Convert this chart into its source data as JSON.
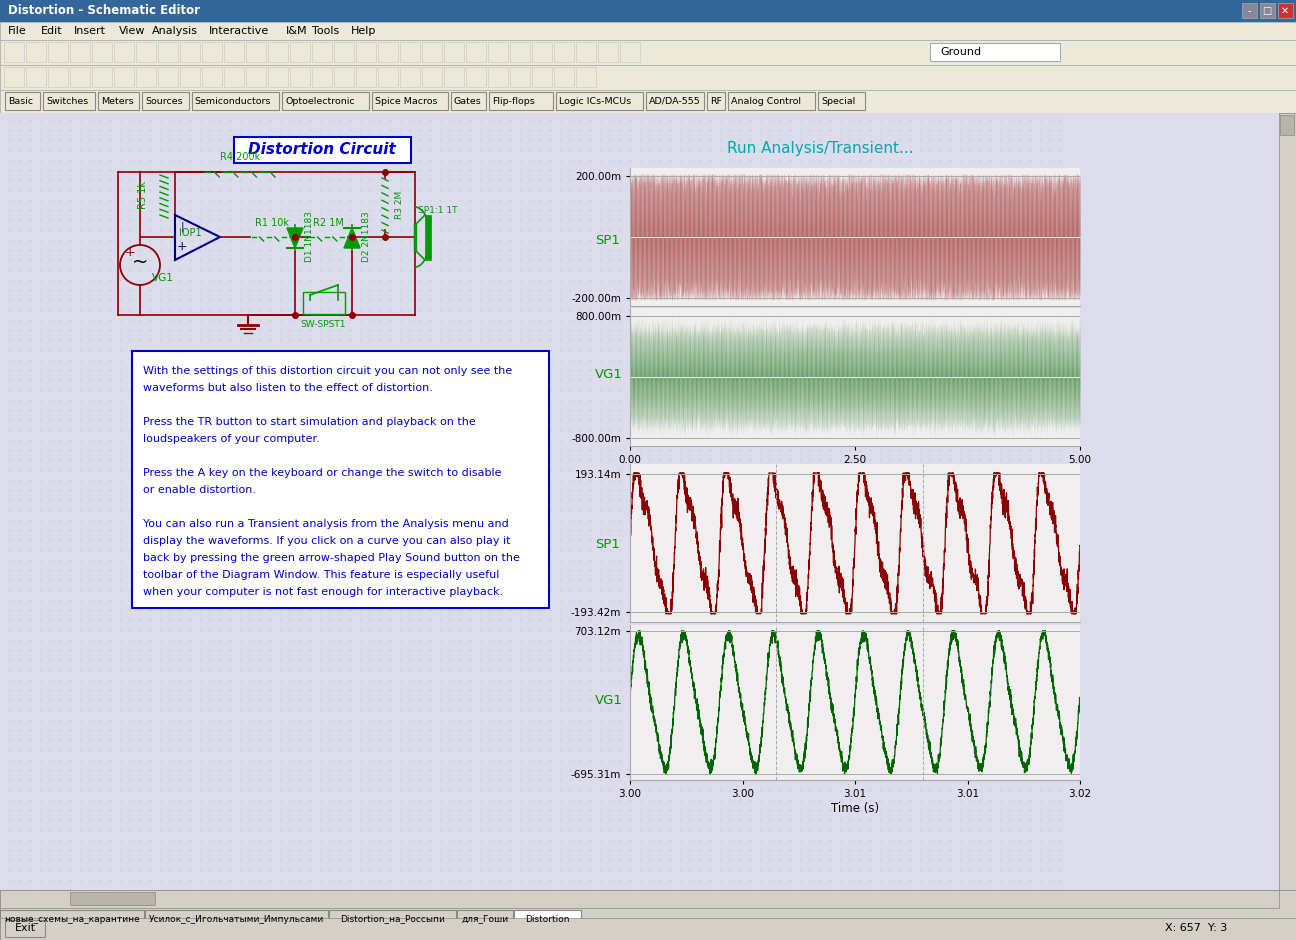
{
  "title_bar": "Distortion - Schematic Editor",
  "window_title_bg": "#336699",
  "app_bg": "#d4d0c8",
  "canvas_bg": "#dcdcec",
  "dot_color": "#c0c0d0",
  "circuit_title": "Distortion Circuit",
  "circuit_title_color": "#0000cc",
  "circuit_border": "#0000cc",
  "run_analysis_text": "Run Analysis/Transient...",
  "run_analysis_color": "#00aaaa",
  "sp1_label": "SP1",
  "vg1_label": "VG1",
  "label_color": "#009900",
  "plot1_color": "#8b0000",
  "plot2_color": "#006400",
  "plot3_color": "#8b0000",
  "plot4_color": "#006400",
  "text_box_color": "#0000cc",
  "text_box_bg": "#ffffff",
  "text_content": [
    "With the settings of this distortion circuit you can not only see the",
    "waveforms but also listen to the effect of distortion.",
    "",
    "Press the TR button to start simulation and playback on the",
    "loudspeakers of your computer.",
    "",
    "Press the A key on the keyboard or change the switch to disable",
    "or enable distortion.",
    "",
    "You can also run a Transient analysis from the Analysis menu and",
    "display the waveforms. If you click on a curve you can also play it",
    "back by pressing the green arrow-shaped Play Sound button on the",
    "toolbar of the Diagram Window. This feature is especially useful",
    "when your computer is not fast enough for interactive playback."
  ],
  "tab_labels": [
    "новые_схемы_на_карантине",
    "Усилок_с_Игольчатыми_Импульсами",
    "Distortion_на_Россыпи",
    "для_Гоши",
    "Distortion"
  ],
  "active_tab": "Distortion",
  "status_text": "X: 657  Y: 3",
  "exit_text": "Exit",
  "menu_items": [
    "File",
    "Edit",
    "Insert",
    "View",
    "Analysis",
    "Interactive",
    "I&M",
    "Tools",
    "Help"
  ],
  "comp_tabs": [
    "Basic",
    "Switches",
    "Meters",
    "Sources",
    "Semiconductors",
    "Optoelectronic",
    "Spice Macros",
    "Gates",
    "Flip-flops",
    "Logic ICs-MCUs",
    "AD/DA-555",
    "RF",
    "Analog Control",
    "Special"
  ],
  "circuit_color": "#8b0000",
  "comp_color": "#009900"
}
